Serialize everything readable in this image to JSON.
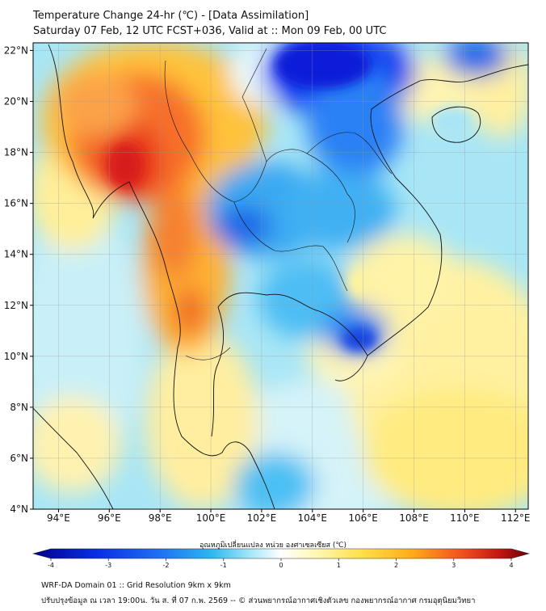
{
  "header": {
    "title_line1": "Temperature Change 24-hr (℃) - [Data Assimilation]",
    "title_line2": "Saturday 07 Feb, 12 UTC FCST+036, Valid at :: Mon 09 Feb, 00 UTC"
  },
  "map": {
    "lon_range": [
      93,
      112.5
    ],
    "lat_range": [
      4,
      22.3
    ],
    "x_ticks": [
      "94°E",
      "96°E",
      "98°E",
      "100°E",
      "102°E",
      "104°E",
      "106°E",
      "108°E",
      "110°E",
      "112°E"
    ],
    "y_ticks": [
      "22°N",
      "20°N",
      "18°N",
      "16°N",
      "14°N",
      "12°N",
      "10°N",
      "8°N",
      "6°N",
      "4°N"
    ]
  },
  "colorbar": {
    "title": "อุณหภูมิเปลี่ยนแปลง หน่วย องศาเซลเซียส (℃)",
    "labels": [
      "-4",
      "-3",
      "-2",
      "-1",
      "0",
      "1",
      "2",
      "3",
      "4"
    ],
    "colors": {
      "dark_blue": "#00008b",
      "blue": "#0a3bf0",
      "azure": "#2ca8f0",
      "cyan": "#67d8f6",
      "pale_cyan": "#c9f1f8",
      "white": "#ffffff",
      "pale_yellow": "#fff5a8",
      "yellow": "#ffe14a",
      "orange": "#ffae1a",
      "red_orange": "#f4541d",
      "red": "#d7191c",
      "dark_red": "#7a0000"
    }
  },
  "footer": {
    "line1": "WRF-DA Domain 01 :: Grid Resolution 9km x 9km",
    "line2": "ปรับปรุงข้อมูล ณ เวลา 19:00น. วัน ส. ที่ 07 ก.พ. 2569 -- © ส่วนพยากรณ์อากาศเชิงตัวเลข กองพยากรณ์อากาศ กรมอุตุนิยมวิทยา"
  }
}
